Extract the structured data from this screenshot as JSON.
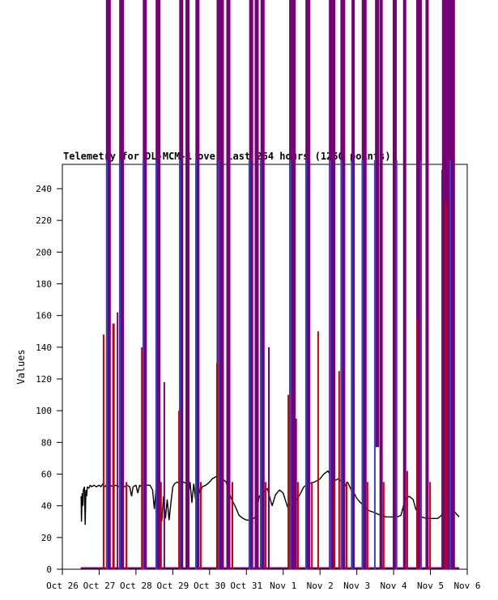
{
  "chart_data": {
    "type": "line",
    "title": "Telemetry for DL-MCM-1 over last 264 hours (1250 points)",
    "xlabel": "",
    "ylabel": "Values",
    "x_tick_labels": [
      "Oct 26",
      "Oct 27",
      "Oct 28",
      "Oct 29",
      "Oct 30",
      "Oct 31",
      "Nov 1",
      "Nov 2",
      "Nov 3",
      "Nov 4",
      "Nov 5",
      "Nov 6"
    ],
    "y_ticks": [
      0,
      20,
      40,
      60,
      80,
      100,
      120,
      140,
      160,
      180,
      200,
      220,
      240
    ],
    "ylim": [
      0,
      255
    ],
    "x_span_days": 11,
    "grid": false,
    "legend": "none",
    "overflow_note": "spike series exceed the y-axis maximum and are drawn past the plot frame to the top edge of the image",
    "colors": {
      "purple": "#770077",
      "blue": "#3344cc",
      "red": "#cc0000",
      "black": "#000000",
      "frame": "#000000",
      "background": "#ffffff"
    },
    "baseline": {
      "series": "purple",
      "value": 0,
      "from_day": 0.5,
      "to_day": 10.78
    },
    "black_line": [
      [
        0.51,
        46
      ],
      [
        0.52,
        30
      ],
      [
        0.54,
        48
      ],
      [
        0.56,
        40
      ],
      [
        0.57,
        50
      ],
      [
        0.6,
        52
      ],
      [
        0.62,
        28
      ],
      [
        0.64,
        50
      ],
      [
        0.66,
        46
      ],
      [
        0.68,
        52
      ],
      [
        0.72,
        51
      ],
      [
        0.76,
        53
      ],
      [
        0.8,
        52
      ],
      [
        0.86,
        53
      ],
      [
        0.92,
        52
      ],
      [
        1.0,
        53
      ],
      [
        1.05,
        52
      ],
      [
        1.1,
        54
      ],
      [
        1.15,
        52
      ],
      [
        1.2,
        53
      ],
      [
        1.27,
        46
      ],
      [
        1.3,
        53
      ],
      [
        1.38,
        52
      ],
      [
        1.45,
        53
      ],
      [
        1.52,
        52
      ],
      [
        1.6,
        53
      ],
      [
        1.68,
        52
      ],
      [
        1.76,
        53
      ],
      [
        1.83,
        52
      ],
      [
        1.88,
        46
      ],
      [
        1.92,
        52
      ],
      [
        2.0,
        53
      ],
      [
        2.05,
        48
      ],
      [
        2.1,
        53
      ],
      [
        2.16,
        52
      ],
      [
        2.22,
        54
      ],
      [
        2.3,
        53
      ],
      [
        2.38,
        53
      ],
      [
        2.45,
        50
      ],
      [
        2.5,
        38
      ],
      [
        2.55,
        52
      ],
      [
        2.6,
        34
      ],
      [
        2.65,
        48
      ],
      [
        2.7,
        30
      ],
      [
        2.75,
        46
      ],
      [
        2.8,
        32
      ],
      [
        2.85,
        44
      ],
      [
        2.9,
        31
      ],
      [
        2.95,
        42
      ],
      [
        3.0,
        52
      ],
      [
        3.05,
        54
      ],
      [
        3.12,
        55
      ],
      [
        3.2,
        54
      ],
      [
        3.3,
        55
      ],
      [
        3.37,
        54
      ],
      [
        3.42,
        46
      ],
      [
        3.47,
        55
      ],
      [
        3.52,
        42
      ],
      [
        3.57,
        54
      ],
      [
        3.62,
        44
      ],
      [
        3.68,
        55
      ],
      [
        3.74,
        48
      ],
      [
        3.8,
        52
      ],
      [
        3.9,
        53
      ],
      [
        4.0,
        55
      ],
      [
        4.07,
        57
      ],
      [
        4.15,
        58
      ],
      [
        4.22,
        59
      ],
      [
        4.25,
        58
      ],
      [
        4.35,
        57
      ],
      [
        4.45,
        55
      ],
      [
        4.5,
        50
      ],
      [
        4.6,
        44
      ],
      [
        4.69,
        40
      ],
      [
        4.8,
        34
      ],
      [
        4.91,
        32
      ],
      [
        5.0,
        31
      ],
      [
        5.13,
        31
      ],
      [
        5.25,
        33
      ],
      [
        5.35,
        46
      ],
      [
        5.45,
        48
      ],
      [
        5.57,
        51
      ],
      [
        5.65,
        44
      ],
      [
        5.7,
        40
      ],
      [
        5.79,
        47
      ],
      [
        5.9,
        50
      ],
      [
        6.0,
        48
      ],
      [
        6.12,
        39
      ],
      [
        6.2,
        42
      ],
      [
        6.34,
        43
      ],
      [
        6.45,
        47
      ],
      [
        6.56,
        52
      ],
      [
        6.7,
        54
      ],
      [
        6.85,
        55
      ],
      [
        7.0,
        57
      ],
      [
        7.1,
        60
      ],
      [
        7.22,
        62
      ],
      [
        7.3,
        58
      ],
      [
        7.4,
        56
      ],
      [
        7.5,
        57
      ],
      [
        7.6,
        55
      ],
      [
        7.66,
        52
      ],
      [
        7.75,
        55
      ],
      [
        7.85,
        50
      ],
      [
        7.95,
        47
      ],
      [
        7.99,
        45
      ],
      [
        8.1,
        42
      ],
      [
        8.2,
        40
      ],
      [
        8.32,
        37
      ],
      [
        8.45,
        36
      ],
      [
        8.55,
        35
      ],
      [
        8.65,
        34
      ],
      [
        8.8,
        33
      ],
      [
        8.98,
        33
      ],
      [
        9.1,
        33
      ],
      [
        9.2,
        34
      ],
      [
        9.31,
        44
      ],
      [
        9.42,
        46
      ],
      [
        9.53,
        44
      ],
      [
        9.6,
        38
      ],
      [
        9.75,
        33
      ],
      [
        9.9,
        32
      ],
      [
        10.08,
        32
      ],
      [
        10.2,
        32
      ],
      [
        10.3,
        34
      ],
      [
        10.4,
        42
      ],
      [
        10.45,
        45
      ],
      [
        10.52,
        44
      ],
      [
        10.6,
        38
      ],
      [
        10.7,
        35
      ],
      [
        10.78,
        33
      ]
    ],
    "spikes": [
      {
        "d": 1.25,
        "c": "p",
        "w": 6,
        "v": 400
      },
      {
        "d": 1.61,
        "c": "p",
        "w": 6,
        "v": 400
      },
      {
        "d": 2.24,
        "c": "p",
        "w": 5,
        "v": 400
      },
      {
        "d": 2.6,
        "c": "p",
        "w": 6,
        "v": 400
      },
      {
        "d": 3.23,
        "c": "p",
        "w": 5,
        "v": 400
      },
      {
        "d": 3.4,
        "c": "p",
        "w": 5,
        "v": 400
      },
      {
        "d": 3.67,
        "c": "p",
        "w": 5,
        "v": 400
      },
      {
        "d": 4.29,
        "c": "p",
        "w": 9,
        "v": 400
      },
      {
        "d": 4.51,
        "c": "p",
        "w": 5,
        "v": 400
      },
      {
        "d": 5.13,
        "c": "p",
        "w": 5,
        "v": 400
      },
      {
        "d": 5.28,
        "c": "p",
        "w": 5,
        "v": 400
      },
      {
        "d": 5.44,
        "c": "p",
        "w": 5,
        "v": 400
      },
      {
        "d": 6.25,
        "c": "p",
        "w": 8,
        "v": 400
      },
      {
        "d": 6.67,
        "c": "p",
        "w": 6,
        "v": 400
      },
      {
        "d": 7.33,
        "c": "p",
        "w": 8,
        "v": 400
      },
      {
        "d": 7.62,
        "c": "p",
        "w": 6,
        "v": 400
      },
      {
        "d": 7.9,
        "c": "p",
        "w": 4,
        "v": 400
      },
      {
        "d": 8.2,
        "c": "p",
        "w": 6,
        "v": 400
      },
      {
        "d": 8.55,
        "c": "p",
        "w": 5,
        "v": 400,
        "b": 77
      },
      {
        "d": 8.66,
        "c": "p",
        "w": 4,
        "v": 400
      },
      {
        "d": 9.03,
        "c": "p",
        "w": 5,
        "v": 400
      },
      {
        "d": 9.3,
        "c": "p",
        "w": 4,
        "v": 400
      },
      {
        "d": 9.69,
        "c": "p",
        "w": 7,
        "v": 400
      },
      {
        "d": 9.91,
        "c": "p",
        "w": 4,
        "v": 400
      },
      {
        "d": 10.32,
        "c": "p",
        "w": 2,
        "v": 252
      },
      {
        "d": 10.49,
        "c": "p",
        "w": 16,
        "v": 400
      },
      {
        "d": 1.5,
        "c": "p",
        "w": 2,
        "v": 162
      },
      {
        "d": 2.77,
        "c": "p",
        "w": 2,
        "v": 118
      },
      {
        "d": 5.61,
        "c": "p",
        "w": 2,
        "v": 140
      },
      {
        "d": 6.34,
        "c": "p",
        "w": 3,
        "v": 95
      },
      {
        "d": 1.21,
        "c": "b",
        "w": 2,
        "v": 258
      },
      {
        "d": 1.56,
        "c": "b",
        "w": 2,
        "v": 258
      },
      {
        "d": 2.2,
        "c": "b",
        "w": 2,
        "v": 258
      },
      {
        "d": 2.55,
        "c": "b",
        "w": 2,
        "v": 258
      },
      {
        "d": 3.19,
        "c": "b",
        "w": 2,
        "v": 258
      },
      {
        "d": 3.63,
        "c": "b",
        "w": 2,
        "v": 258
      },
      {
        "d": 4.25,
        "c": "b",
        "w": 2,
        "v": 258
      },
      {
        "d": 5.08,
        "c": "b",
        "w": 2,
        "v": 258
      },
      {
        "d": 5.39,
        "c": "b",
        "w": 2,
        "v": 258
      },
      {
        "d": 6.2,
        "c": "b",
        "w": 2,
        "v": 258
      },
      {
        "d": 6.62,
        "c": "b",
        "w": 2,
        "v": 258
      },
      {
        "d": 7.28,
        "c": "b",
        "w": 2,
        "v": 258
      },
      {
        "d": 7.58,
        "c": "b",
        "w": 2,
        "v": 258
      },
      {
        "d": 7.86,
        "c": "b",
        "w": 2,
        "v": 258
      },
      {
        "d": 8.15,
        "c": "b",
        "w": 2,
        "v": 258
      },
      {
        "d": 8.49,
        "c": "b",
        "w": 2,
        "v": 258
      },
      {
        "d": 9.08,
        "c": "b",
        "w": 2,
        "v": 258
      },
      {
        "d": 9.74,
        "c": "b",
        "w": 2,
        "v": 258
      },
      {
        "d": 10.54,
        "c": "b",
        "w": 2,
        "v": 258
      },
      {
        "d": 1.12,
        "c": "r",
        "w": 2,
        "v": 148
      },
      {
        "d": 1.39,
        "c": "r",
        "w": 3,
        "v": 155
      },
      {
        "d": 2.16,
        "c": "r",
        "w": 2,
        "v": 140
      },
      {
        "d": 3.17,
        "c": "r",
        "w": 2,
        "v": 100
      },
      {
        "d": 4.2,
        "c": "r",
        "w": 2,
        "v": 130
      },
      {
        "d": 6.14,
        "c": "r",
        "w": 2,
        "v": 110
      },
      {
        "d": 6.95,
        "c": "r",
        "w": 2,
        "v": 150
      },
      {
        "d": 7.52,
        "c": "r",
        "w": 2,
        "v": 125
      },
      {
        "d": 9.64,
        "c": "r",
        "w": 2,
        "v": 158
      },
      {
        "d": 10.41,
        "c": "r",
        "w": 2,
        "v": 232
      },
      {
        "d": 1.74,
        "c": "r",
        "w": 2,
        "v": 55
      },
      {
        "d": 2.68,
        "c": "r",
        "w": 2,
        "v": 55
      },
      {
        "d": 3.76,
        "c": "r",
        "w": 2,
        "v": 55
      },
      {
        "d": 4.62,
        "c": "r",
        "w": 2,
        "v": 55
      },
      {
        "d": 5.52,
        "c": "r",
        "w": 2,
        "v": 55
      },
      {
        "d": 6.4,
        "c": "r",
        "w": 2,
        "v": 55
      },
      {
        "d": 6.78,
        "c": "r",
        "w": 2,
        "v": 55
      },
      {
        "d": 7.39,
        "c": "r",
        "w": 2,
        "v": 55
      },
      {
        "d": 7.72,
        "c": "r",
        "w": 2,
        "v": 55
      },
      {
        "d": 8.29,
        "c": "r",
        "w": 2,
        "v": 55
      },
      {
        "d": 8.73,
        "c": "r",
        "w": 2,
        "v": 55
      },
      {
        "d": 9.37,
        "c": "r",
        "w": 2,
        "v": 62
      },
      {
        "d": 9.99,
        "c": "r",
        "w": 2,
        "v": 55
      }
    ]
  }
}
